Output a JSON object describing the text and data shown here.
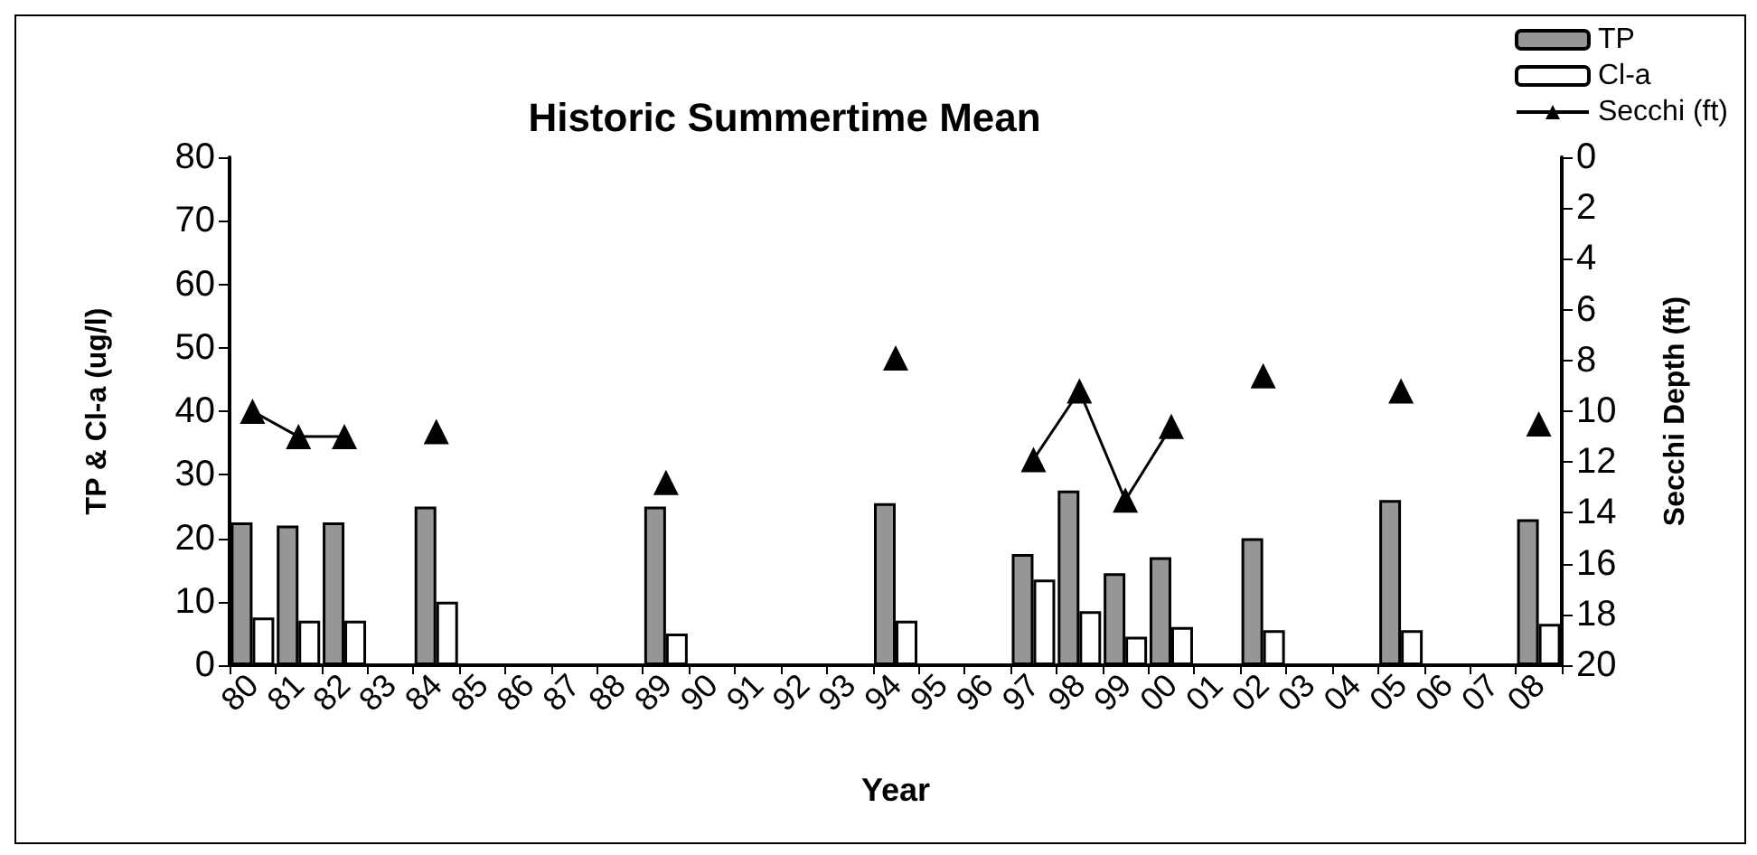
{
  "chart_data": {
    "type": "bar",
    "title": "Historic Summertime Mean",
    "xlabel": "Year",
    "ylabel": "TP & Cl-a (ug/l)",
    "y2label": "Secchi Depth (ft)",
    "categories": [
      "80",
      "81",
      "82",
      "83",
      "84",
      "85",
      "86",
      "87",
      "88",
      "89",
      "90",
      "91",
      "92",
      "93",
      "94",
      "95",
      "96",
      "97",
      "98",
      "99",
      "00",
      "01",
      "02",
      "03",
      "04",
      "05",
      "06",
      "07",
      "08"
    ],
    "series": [
      {
        "name": "TP",
        "color": "#969696",
        "values": [
          22.5,
          22,
          22.5,
          null,
          25,
          null,
          null,
          null,
          null,
          25,
          null,
          null,
          null,
          null,
          25.5,
          null,
          null,
          17.5,
          27.5,
          14.5,
          17,
          null,
          20,
          null,
          null,
          26,
          null,
          null,
          23
        ]
      },
      {
        "name": "Cl-a",
        "color": "#ffffff",
        "values": [
          7.5,
          7,
          7,
          null,
          10,
          null,
          null,
          null,
          null,
          5,
          null,
          null,
          null,
          null,
          7,
          null,
          null,
          13.5,
          8.5,
          4.5,
          6,
          null,
          5.5,
          null,
          null,
          5.5,
          null,
          null,
          6.5
        ]
      },
      {
        "name": "Secchi (ft)",
        "type": "line",
        "axis": "y2",
        "color": "#000000",
        "values": [
          10,
          11,
          11,
          null,
          10.8,
          null,
          null,
          null,
          null,
          12.8,
          null,
          null,
          null,
          null,
          7.9,
          null,
          null,
          11.9,
          9.2,
          13.5,
          10.6,
          null,
          8.6,
          null,
          null,
          9.2,
          null,
          null,
          10.5
        ]
      }
    ],
    "ylim": [
      0,
      80
    ],
    "yticks": [
      0,
      10,
      20,
      30,
      40,
      50,
      60,
      70,
      80
    ],
    "y2lim": [
      20,
      0
    ],
    "y2ticks": [
      0,
      2,
      4,
      6,
      8,
      10,
      12,
      14,
      16,
      18,
      20
    ],
    "marker": "triangle",
    "legend": "top right",
    "grid": false
  }
}
